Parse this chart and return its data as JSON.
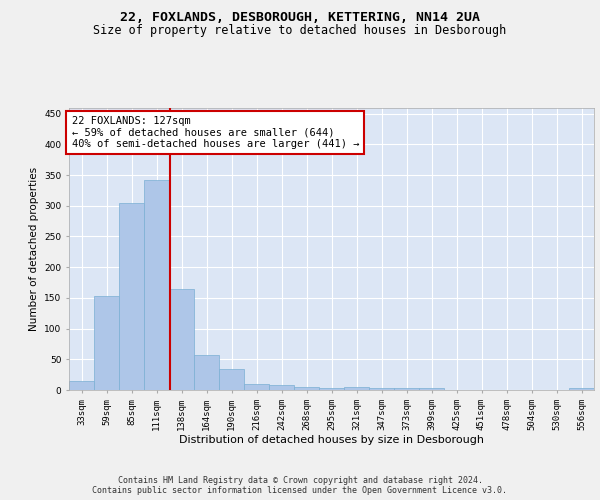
{
  "title1": "22, FOXLANDS, DESBOROUGH, KETTERING, NN14 2UA",
  "title2": "Size of property relative to detached houses in Desborough",
  "xlabel": "Distribution of detached houses by size in Desborough",
  "ylabel": "Number of detached properties",
  "categories": [
    "33sqm",
    "59sqm",
    "85sqm",
    "111sqm",
    "138sqm",
    "164sqm",
    "190sqm",
    "216sqm",
    "242sqm",
    "268sqm",
    "295sqm",
    "321sqm",
    "347sqm",
    "373sqm",
    "399sqm",
    "425sqm",
    "451sqm",
    "478sqm",
    "504sqm",
    "530sqm",
    "556sqm"
  ],
  "values": [
    15,
    153,
    305,
    342,
    165,
    57,
    35,
    10,
    8,
    5,
    3,
    5,
    3,
    3,
    3,
    0,
    0,
    0,
    0,
    0,
    3
  ],
  "bar_color": "#aec6e8",
  "bar_edge_color": "#7aafd4",
  "background_color": "#dce6f5",
  "grid_color": "#ffffff",
  "vline_x": 3.52,
  "vline_color": "#cc0000",
  "annotation_text": "22 FOXLANDS: 127sqm\n← 59% of detached houses are smaller (644)\n40% of semi-detached houses are larger (441) →",
  "annotation_box_color": "#ffffff",
  "annotation_box_edge_color": "#cc0000",
  "footer1": "Contains HM Land Registry data © Crown copyright and database right 2024.",
  "footer2": "Contains public sector information licensed under the Open Government Licence v3.0.",
  "ylim": [
    0,
    460
  ],
  "title1_fontsize": 9.5,
  "title2_fontsize": 8.5,
  "xlabel_fontsize": 8,
  "ylabel_fontsize": 7.5,
  "tick_fontsize": 6.5,
  "annotation_fontsize": 7.5,
  "footer_fontsize": 6.0,
  "fig_bg": "#f0f0f0"
}
